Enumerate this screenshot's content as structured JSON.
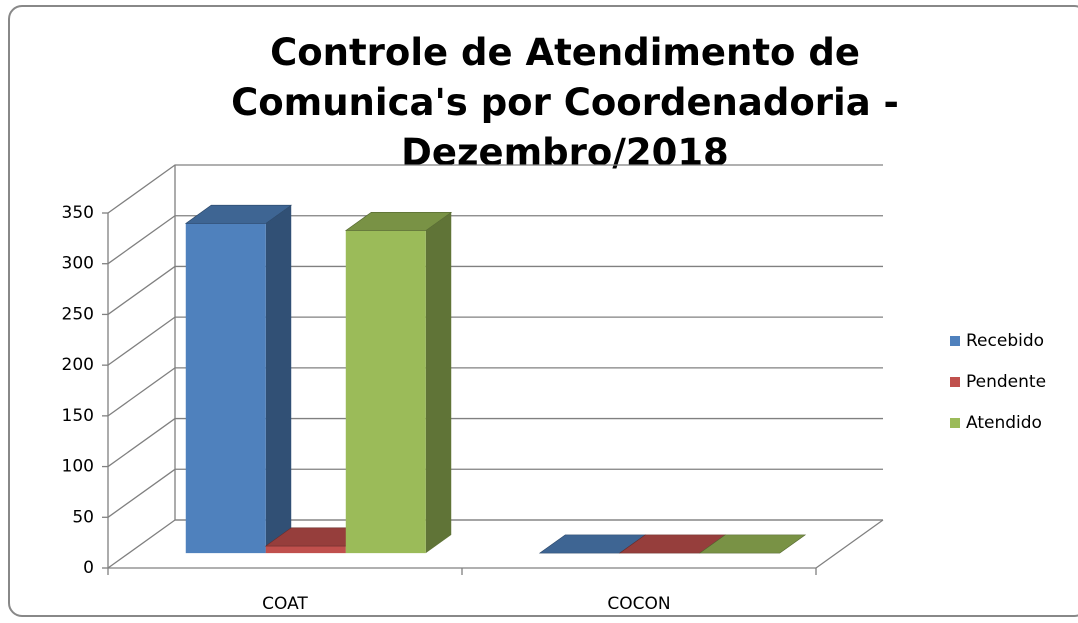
{
  "chart_data": {
    "type": "bar",
    "title": "Controle de Atendimento de Comunica's por Coordenadoria - Dezembro/2018",
    "categories": [
      "COAT",
      "COCON"
    ],
    "series": [
      {
        "name": "Recebido",
        "color": "#4f81bd",
        "values": [
          325,
          0
        ]
      },
      {
        "name": "Pendente",
        "color": "#c0504d",
        "values": [
          7,
          0
        ]
      },
      {
        "name": "Atendido",
        "color": "#9bbb59",
        "values": [
          318,
          0
        ]
      }
    ],
    "ylim": [
      0,
      350
    ],
    "yticks": [
      0,
      50,
      100,
      150,
      200,
      250,
      300,
      350
    ],
    "grid": true,
    "legend": "right"
  }
}
